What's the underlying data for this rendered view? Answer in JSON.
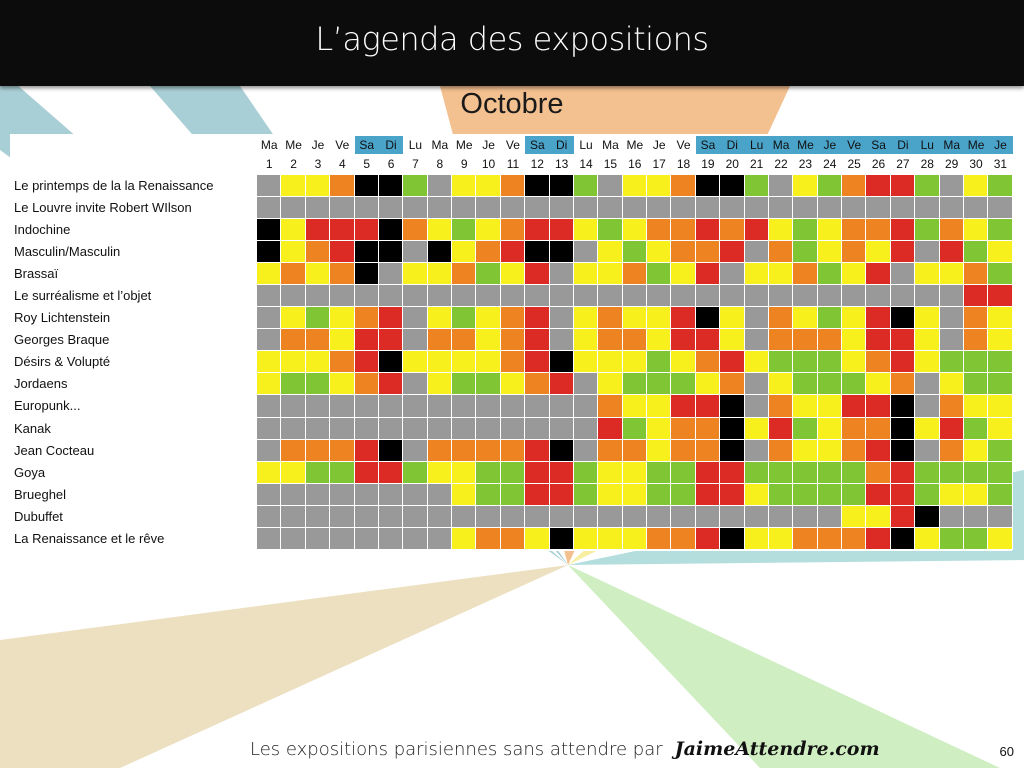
{
  "title": "L’agenda des expositions",
  "month": "Octobre",
  "days": [
    "Ma",
    "Me",
    "Je",
    "Ve",
    "Sa",
    "Di",
    "Lu",
    "Ma",
    "Me",
    "Je",
    "Ve",
    "Sa",
    "Di",
    "Lu",
    "Ma",
    "Me",
    "Je",
    "Ve",
    "Sa",
    "Di",
    "Lu",
    "Ma",
    "Me",
    "Je",
    "Ve",
    "Sa",
    "Di",
    "Lu",
    "Ma",
    "Me",
    "Je"
  ],
  "dates": [
    "1",
    "2",
    "3",
    "4",
    "5",
    "6",
    "7",
    "8",
    "9",
    "10",
    "11",
    "12",
    "13",
    "14",
    "15",
    "16",
    "17",
    "18",
    "19",
    "20",
    "21",
    "22",
    "23",
    "24",
    "25",
    "26",
    "27",
    "28",
    "29",
    "30",
    "31"
  ],
  "highlighted_days": [
    5,
    6,
    12,
    13,
    19,
    20,
    21,
    22,
    23,
    24,
    25,
    26,
    27,
    28,
    29,
    30,
    31
  ],
  "colors": {
    "G": "#999999",
    "Y": "#f7f01c",
    "O": "#ee8322",
    "R": "#dc2a24",
    "K": "#000000",
    "L": "#80c534",
    "day_highlight": "#4aa3c9",
    "header_bg": "#0c0c0c"
  },
  "exhibitions": [
    {
      "name": "Le printemps de la la Renaissance",
      "cells": "GYYOKKLGYYOKKLGYYOKKLGYLORRLGYL"
    },
    {
      "name": "Le Louvre invite Robert WIlson",
      "cells": "GGGGGGGGGGGGGGGGGGGGGGGGGGGGGGG"
    },
    {
      "name": "Indochine",
      "cells": "KYRRRKOYLYORRYLYOORORYLYOORLOYL"
    },
    {
      "name": "Masculin/Masculin",
      "cells": "KYORKKGKYORKKGYLYOORGOLYOYRGRLY"
    },
    {
      "name": "Brassaï",
      "cells": "YOYOKGYYOLYRGYYOLYRGYYOLYRGYYOL"
    },
    {
      "name": "Le surréalisme et l’objet",
      "cells": "GGGGGGGGGGGGGGGGGGGGGGGGGGGGGRR"
    },
    {
      "name": "Roy Lichtenstein",
      "cells": "GYLYORGYLYORGYOYYRKYGOYLYRKYGOY"
    },
    {
      "name": "Georges Braque",
      "cells": "GOOYRRGOOYORGYOOYRRYGOOOYRRYGOY"
    },
    {
      "name": "Désirs & Volupté",
      "cells": "YYYORKYYYYORKYYYLYORYLLLYORYLLL"
    },
    {
      "name": "Jordaens",
      "cells": "YLLYORGYLLYORGYLLLYOGYLLLYOGYLL"
    },
    {
      "name": "Europunk...",
      "cells": "GGGGGGGGGGGGGGOYYRRKGOYYRRKGOYY"
    },
    {
      "name": "Kanak",
      "cells": "GGGGGGGGGGGGGGRLYOOKYRLYOOKYRLY"
    },
    {
      "name": "Jean Cocteau",
      "cells": "GOOORKGOOOORKGOOYOOKGOYYORKGOYL"
    },
    {
      "name": "Goya",
      "cells": "YYLLRRLYYLLRRLYYLLRRLLLLLORLLLL"
    },
    {
      "name": "Brueghel",
      "cells": "GGGGGGGGYLLRRLYYLLRRYLLLLRRLYYL"
    },
    {
      "name": "Dubuffet",
      "cells": "GGGGGGGGGGGGGGGGGGGGGGGGYYRKGGG"
    },
    {
      "name": "La Renaissance et le rêve",
      "cells": "GGGGGGGGYOOYKYYYOORKYYOOORKYLLY"
    }
  ],
  "footer": {
    "tagline": "Les expositions parisiennes sans attendre par",
    "brand": "JaimeAttendre.com",
    "page_number": "60"
  }
}
